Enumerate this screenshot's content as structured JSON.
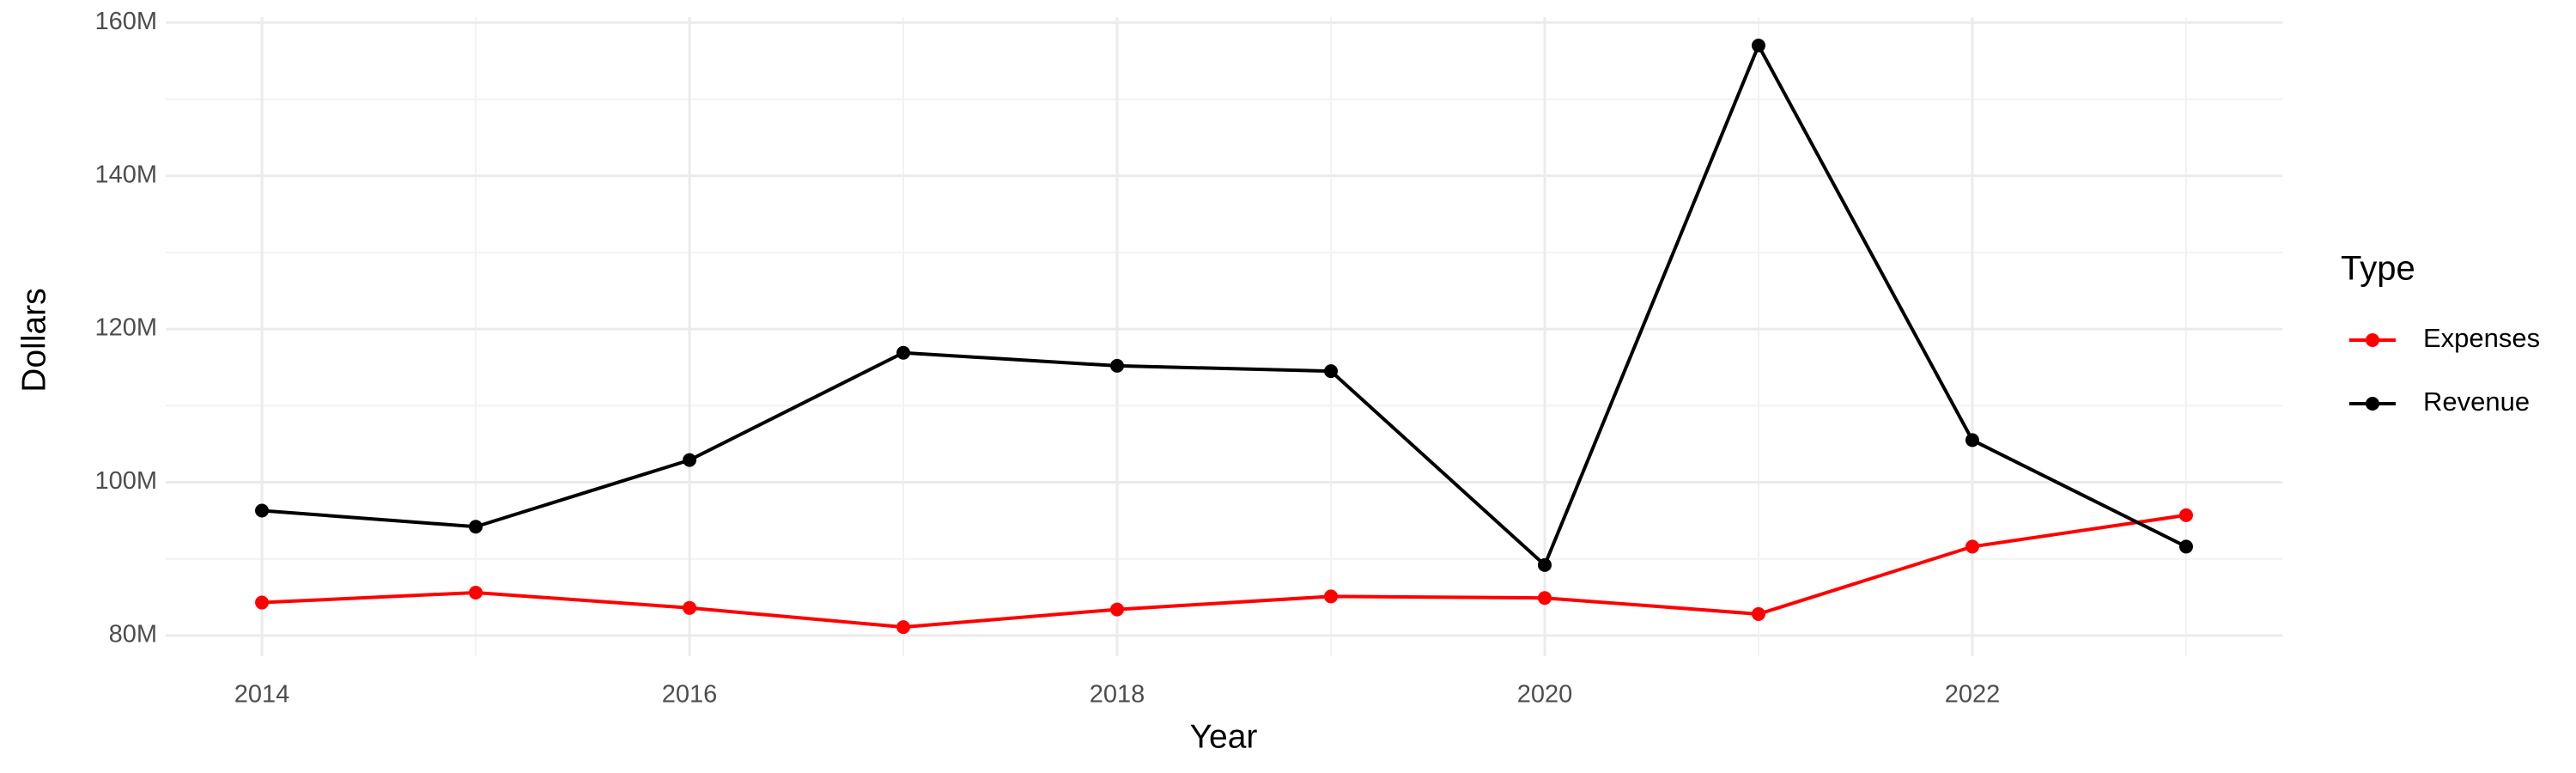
{
  "chart_data": {
    "type": "line",
    "x_label": "Year",
    "y_label": "Dollars",
    "x": [
      2014,
      2015,
      2016,
      2017,
      2018,
      2019,
      2020,
      2021,
      2022,
      2023
    ],
    "series": [
      {
        "name": "Expenses",
        "color": "#ff0000",
        "values": [
          84300000,
          85600000,
          83600000,
          81100000,
          83400000,
          85100000,
          84900000,
          82800000,
          91600000,
          95700000
        ]
      },
      {
        "name": "Revenue",
        "color": "#000000",
        "values": [
          96300000,
          94200000,
          102900000,
          116900000,
          115200000,
          114500000,
          89200000,
          157000000,
          105500000,
          91600000
        ]
      }
    ],
    "legend_title": "Type",
    "legend": "right",
    "xlim": [
      2013.55,
      2023.45
    ],
    "xticks": [
      2014,
      2016,
      2018,
      2020,
      2022
    ],
    "ylim": [
      77300000,
      160700000
    ],
    "yticks": [
      {
        "value": 80000000,
        "label": "80M"
      },
      {
        "value": 100000000,
        "label": "100M"
      },
      {
        "value": 120000000,
        "label": "120M"
      },
      {
        "value": 140000000,
        "label": "140M"
      },
      {
        "value": 160000000,
        "label": "160M"
      }
    ],
    "grid": true
  }
}
